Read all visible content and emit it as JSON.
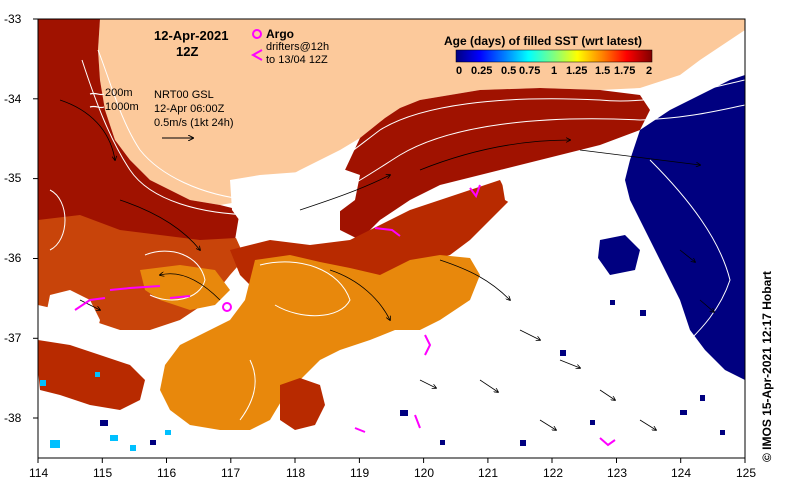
{
  "header": {
    "date": "12-Apr-2021",
    "time": "12Z",
    "argo_label": "Argo",
    "drifters_line1": "drifters@12h",
    "drifters_line2": "to 13/04 12Z"
  },
  "bathymetry": {
    "contour1": "200m",
    "contour2": "1000m"
  },
  "currents": {
    "source": "NRT00 GSL",
    "time": "12-Apr 06:00Z",
    "scale": "0.5m/s (1kt 24h)"
  },
  "legend": {
    "title": "Age (days) of filled SST (wrt latest)",
    "ticks": [
      "0",
      "0.25",
      "0.5",
      "0.75",
      "1",
      "1.25",
      "1.5",
      "1.75",
      "2"
    ],
    "colors": [
      "#00007f",
      "#0000ff",
      "#0080ff",
      "#00ffff",
      "#80ff80",
      "#ffff00",
      "#ff8000",
      "#ff0000",
      "#7f0000"
    ]
  },
  "axes": {
    "x_ticks": [
      "114",
      "115",
      "116",
      "117",
      "118",
      "119",
      "120",
      "121",
      "122",
      "123",
      "124",
      "125"
    ],
    "y_ticks": [
      "-33",
      "-34",
      "-35",
      "-36",
      "-37",
      "-38"
    ],
    "x_range": [
      114,
      125
    ],
    "y_range": [
      -38.5,
      -33
    ]
  },
  "credit": "© IMOS 15-Apr-2021 12:17 Hobart",
  "palette": {
    "land": "#fcc99b",
    "dark_red": "#a01200",
    "red": "#b82a00",
    "rust": "#c8440a",
    "orange": "#e8880c",
    "navy": "#000080",
    "magenta": "#ff00ff"
  }
}
